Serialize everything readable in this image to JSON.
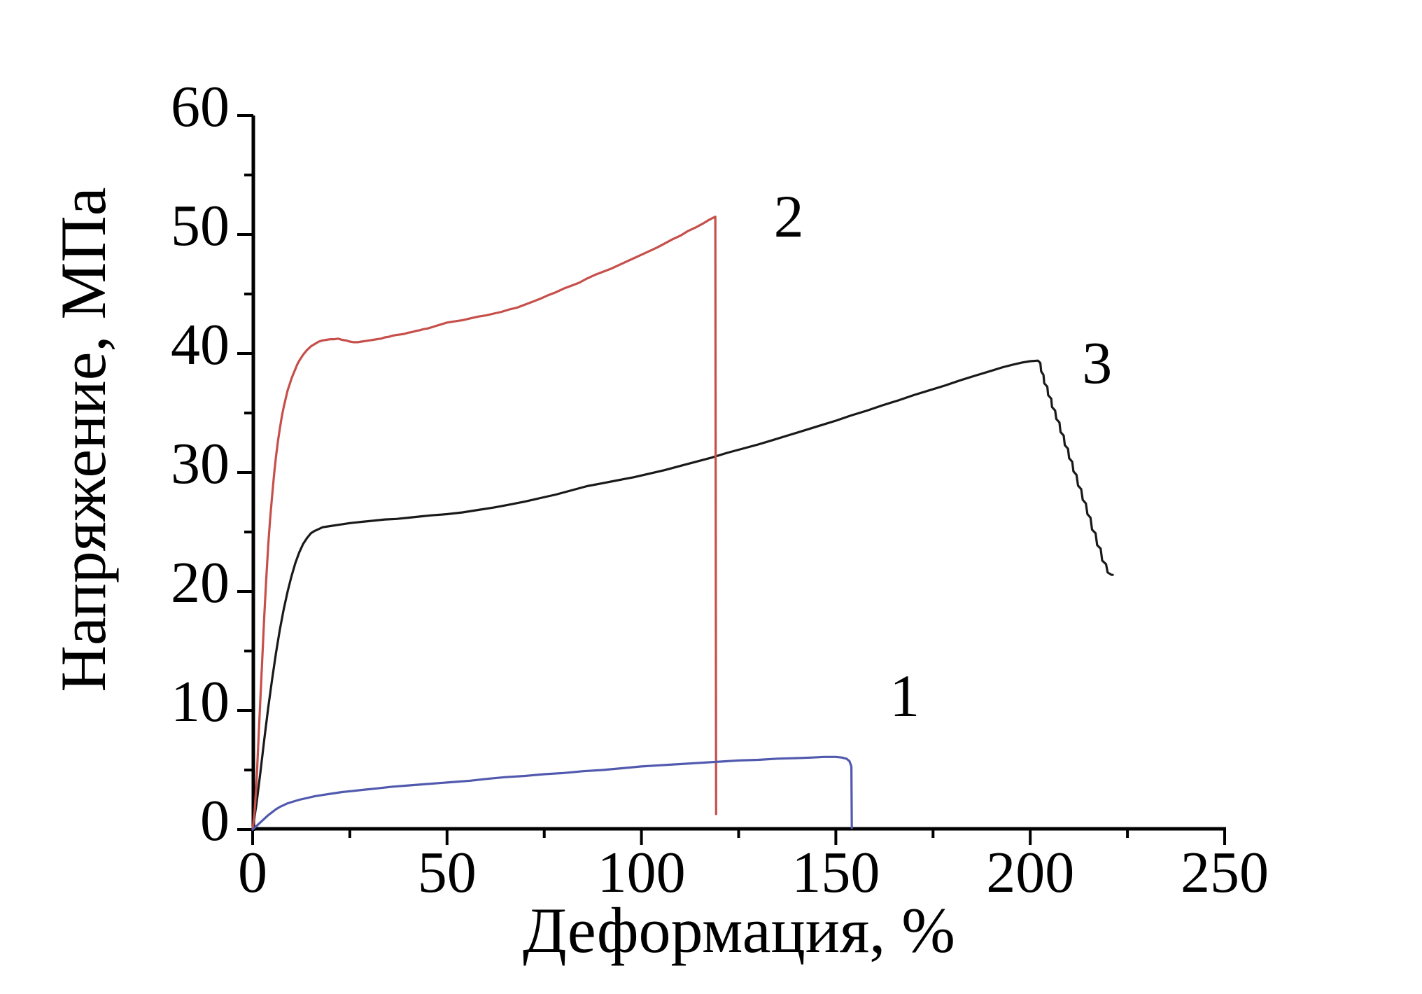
{
  "chart_data": {
    "type": "line",
    "title": "",
    "xlabel": "Деформация, %",
    "ylabel": "Напряжение, МПа",
    "xlim": [
      0,
      250
    ],
    "ylim": [
      0,
      60
    ],
    "x_major_ticks": [
      0,
      50,
      100,
      150,
      200,
      250
    ],
    "x_minor_ticks": [
      25,
      75,
      125,
      175,
      225
    ],
    "y_major_ticks": [
      0,
      10,
      20,
      30,
      40,
      50,
      60
    ],
    "y_minor_ticks": [
      5,
      15,
      25,
      35,
      45,
      55
    ],
    "grid": false,
    "legend_position": "none",
    "axis_color": "#000000",
    "background": "#ffffff",
    "series": [
      {
        "name": "curve-3",
        "curve_label": "3",
        "color": "#191919",
        "annotation": {
          "x": 217.2,
          "y": 39.3
        },
        "points": [
          [
            0,
            0
          ],
          [
            1,
            2.2
          ],
          [
            2,
            4.8
          ],
          [
            3,
            7.6
          ],
          [
            4,
            10.2
          ],
          [
            5,
            12.6
          ],
          [
            6,
            14.8
          ],
          [
            7,
            16.8
          ],
          [
            8,
            18.5
          ],
          [
            9,
            20
          ],
          [
            10,
            21.3
          ],
          [
            11,
            22.4
          ],
          [
            12,
            23.3
          ],
          [
            13,
            24
          ],
          [
            14,
            24.5
          ],
          [
            15,
            24.9
          ],
          [
            16,
            25.1
          ],
          [
            17,
            25.25
          ],
          [
            18,
            25.4
          ],
          [
            20,
            25.5
          ],
          [
            22,
            25.6
          ],
          [
            25,
            25.75
          ],
          [
            28,
            25.85
          ],
          [
            31,
            25.95
          ],
          [
            34,
            26.05
          ],
          [
            37,
            26.1
          ],
          [
            40,
            26.2
          ],
          [
            43,
            26.3
          ],
          [
            46,
            26.4
          ],
          [
            50,
            26.5
          ],
          [
            54,
            26.65
          ],
          [
            58,
            26.85
          ],
          [
            62,
            27.05
          ],
          [
            66,
            27.3
          ],
          [
            70,
            27.55
          ],
          [
            74,
            27.85
          ],
          [
            78,
            28.15
          ],
          [
            82,
            28.5
          ],
          [
            86,
            28.85
          ],
          [
            90,
            29.1
          ],
          [
            94,
            29.35
          ],
          [
            98,
            29.6
          ],
          [
            102,
            29.9
          ],
          [
            106,
            30.2
          ],
          [
            110,
            30.55
          ],
          [
            114,
            30.9
          ],
          [
            118,
            31.25
          ],
          [
            122,
            31.65
          ],
          [
            126,
            32
          ],
          [
            130,
            32.35
          ],
          [
            134,
            32.75
          ],
          [
            138,
            33.15
          ],
          [
            142,
            33.55
          ],
          [
            146,
            33.95
          ],
          [
            150,
            34.35
          ],
          [
            154,
            34.8
          ],
          [
            158,
            35.2
          ],
          [
            162,
            35.65
          ],
          [
            166,
            36.05
          ],
          [
            170,
            36.5
          ],
          [
            174,
            36.9
          ],
          [
            178,
            37.3
          ],
          [
            182,
            37.75
          ],
          [
            186,
            38.15
          ],
          [
            190,
            38.55
          ],
          [
            193,
            38.85
          ],
          [
            196,
            39.1
          ],
          [
            198,
            39.25
          ],
          [
            200,
            39.35
          ],
          [
            202,
            39.4
          ],
          [
            202.6,
            39.2
          ],
          [
            202.8,
            38.5
          ],
          [
            203.4,
            38.2
          ],
          [
            203.6,
            37.5
          ],
          [
            204.4,
            37.2
          ],
          [
            204.6,
            36.5
          ],
          [
            205.4,
            36.2
          ],
          [
            205.6,
            35.5
          ],
          [
            206.4,
            35.2
          ],
          [
            206.7,
            34.5
          ],
          [
            207.5,
            34.2
          ],
          [
            207.8,
            33.4
          ],
          [
            208.6,
            33.1
          ],
          [
            208.9,
            32.3
          ],
          [
            209.7,
            32
          ],
          [
            210,
            31.2
          ],
          [
            210.8,
            30.9
          ],
          [
            211.1,
            30.1
          ],
          [
            211.9,
            29.8
          ],
          [
            212.3,
            28.9
          ],
          [
            213.1,
            28.6
          ],
          [
            213.5,
            27.7
          ],
          [
            214.3,
            27.4
          ],
          [
            214.7,
            26.5
          ],
          [
            215.5,
            26.2
          ],
          [
            215.9,
            25.2
          ],
          [
            216.8,
            24.9
          ],
          [
            217.2,
            23.9
          ],
          [
            218.1,
            23.6
          ],
          [
            218.5,
            22.6
          ],
          [
            219.5,
            22.3
          ],
          [
            219.9,
            21.6
          ],
          [
            220.9,
            21.4
          ],
          [
            221.2,
            21.4
          ]
        ]
      },
      {
        "name": "curve-2",
        "curve_label": "2",
        "color": "#c64f4a",
        "annotation": {
          "x": 137.9,
          "y": 51.6
        },
        "points": [
          [
            0,
            0
          ],
          [
            0.5,
            1.5
          ],
          [
            1,
            4
          ],
          [
            1.5,
            7.5
          ],
          [
            2,
            11
          ],
          [
            2.5,
            14.5
          ],
          [
            3,
            18
          ],
          [
            3.5,
            21
          ],
          [
            4,
            23.8
          ],
          [
            4.5,
            26.1
          ],
          [
            5,
            28
          ],
          [
            5.5,
            29.8
          ],
          [
            6,
            31.3
          ],
          [
            6.5,
            32.6
          ],
          [
            7,
            33.7
          ],
          [
            7.5,
            34.7
          ],
          [
            8,
            35.5
          ],
          [
            8.5,
            36.2
          ],
          [
            9,
            36.9
          ],
          [
            9.5,
            37.4
          ],
          [
            10,
            37.9
          ],
          [
            10.5,
            38.3
          ],
          [
            11,
            38.7
          ],
          [
            11.5,
            39.1
          ],
          [
            12,
            39.4
          ],
          [
            13,
            39.9
          ],
          [
            14,
            40.3
          ],
          [
            15,
            40.6
          ],
          [
            16,
            40.8
          ],
          [
            17,
            41
          ],
          [
            18,
            41.1
          ],
          [
            19,
            41.15
          ],
          [
            20,
            41.2
          ],
          [
            21,
            41.2
          ],
          [
            22,
            41.25
          ],
          [
            23,
            41.15
          ],
          [
            24,
            41.1
          ],
          [
            25,
            41
          ],
          [
            26,
            40.95
          ],
          [
            27,
            40.95
          ],
          [
            28,
            41
          ],
          [
            29,
            41.05
          ],
          [
            30,
            41.1
          ],
          [
            31,
            41.15
          ],
          [
            32,
            41.2
          ],
          [
            33,
            41.25
          ],
          [
            34,
            41.35
          ],
          [
            35,
            41.4
          ],
          [
            36,
            41.5
          ],
          [
            37,
            41.55
          ],
          [
            38,
            41.6
          ],
          [
            39,
            41.65
          ],
          [
            40,
            41.75
          ],
          [
            41,
            41.8
          ],
          [
            42,
            41.9
          ],
          [
            43,
            41.95
          ],
          [
            44,
            42.05
          ],
          [
            45,
            42.1
          ],
          [
            46,
            42.2
          ],
          [
            47,
            42.3
          ],
          [
            48,
            42.4
          ],
          [
            49,
            42.5
          ],
          [
            50,
            42.6
          ],
          [
            52,
            42.7
          ],
          [
            54,
            42.8
          ],
          [
            56,
            42.95
          ],
          [
            58,
            43.1
          ],
          [
            60,
            43.2
          ],
          [
            62,
            43.35
          ],
          [
            64,
            43.5
          ],
          [
            66,
            43.7
          ],
          [
            68,
            43.85
          ],
          [
            70,
            44.1
          ],
          [
            72,
            44.35
          ],
          [
            74,
            44.6
          ],
          [
            76,
            44.9
          ],
          [
            78,
            45.15
          ],
          [
            80,
            45.45
          ],
          [
            82,
            45.7
          ],
          [
            84,
            45.95
          ],
          [
            86,
            46.3
          ],
          [
            88,
            46.6
          ],
          [
            90,
            46.85
          ],
          [
            92,
            47.1
          ],
          [
            94,
            47.4
          ],
          [
            96,
            47.7
          ],
          [
            98,
            48
          ],
          [
            100,
            48.3
          ],
          [
            102,
            48.6
          ],
          [
            104,
            48.9
          ],
          [
            106,
            49.25
          ],
          [
            108,
            49.6
          ],
          [
            110,
            49.9
          ],
          [
            112,
            50.3
          ],
          [
            114,
            50.6
          ],
          [
            116,
            50.95
          ],
          [
            117.5,
            51.25
          ],
          [
            119,
            51.5
          ],
          [
            119.2,
            1.3
          ]
        ]
      },
      {
        "name": "curve-1",
        "curve_label": "1",
        "color": "#5159ae",
        "annotation": {
          "x": 167.7,
          "y": 11.3
        },
        "points": [
          [
            0,
            0
          ],
          [
            1,
            0.3
          ],
          [
            2,
            0.6
          ],
          [
            3,
            0.9
          ],
          [
            4,
            1.2
          ],
          [
            5,
            1.45
          ],
          [
            6,
            1.7
          ],
          [
            7,
            1.9
          ],
          [
            8,
            2.05
          ],
          [
            9,
            2.2
          ],
          [
            10,
            2.3
          ],
          [
            12,
            2.5
          ],
          [
            14,
            2.65
          ],
          [
            16,
            2.8
          ],
          [
            18,
            2.9
          ],
          [
            20,
            3
          ],
          [
            23,
            3.15
          ],
          [
            26,
            3.25
          ],
          [
            29,
            3.35
          ],
          [
            32,
            3.45
          ],
          [
            36,
            3.6
          ],
          [
            40,
            3.7
          ],
          [
            44,
            3.8
          ],
          [
            48,
            3.9
          ],
          [
            52,
            4
          ],
          [
            56,
            4.1
          ],
          [
            60,
            4.25
          ],
          [
            65,
            4.4
          ],
          [
            70,
            4.5
          ],
          [
            75,
            4.65
          ],
          [
            80,
            4.75
          ],
          [
            85,
            4.9
          ],
          [
            90,
            5
          ],
          [
            95,
            5.15
          ],
          [
            100,
            5.3
          ],
          [
            105,
            5.4
          ],
          [
            110,
            5.5
          ],
          [
            115,
            5.6
          ],
          [
            120,
            5.7
          ],
          [
            125,
            5.8
          ],
          [
            130,
            5.85
          ],
          [
            135,
            5.95
          ],
          [
            140,
            6
          ],
          [
            144,
            6.05
          ],
          [
            147,
            6.1
          ],
          [
            150,
            6.1
          ],
          [
            151.5,
            6.05
          ],
          [
            152.7,
            5.95
          ],
          [
            153.5,
            5.75
          ],
          [
            154,
            5.3
          ],
          [
            154.1,
            0.15
          ]
        ]
      }
    ]
  }
}
